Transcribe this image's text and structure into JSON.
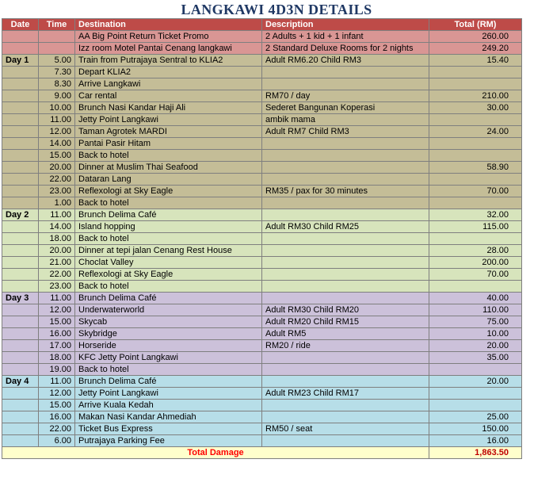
{
  "title": "LANGKAWI 4D3N DETAILS",
  "table": {
    "headers": [
      "Date",
      "Time",
      "Destination",
      "Description",
      "Total (RM)"
    ],
    "rows": [
      {
        "group": "promo",
        "date": "",
        "time": "",
        "destination": "AA Big Point Return Ticket Promo",
        "description": "2 Adults + 1 kid + 1 infant",
        "total": "260.00"
      },
      {
        "group": "promo",
        "date": "",
        "time": "",
        "destination": "Izz room Motel Pantai Cenang langkawi",
        "description": "2 Standard Deluxe Rooms for 2 nights",
        "total": "249.20"
      },
      {
        "group": "day1",
        "date": "Day 1",
        "time": "5.00",
        "destination": "Train from Putrajaya Sentral to KLIA2",
        "description": "Adult RM6.20 Child RM3",
        "total": "15.40"
      },
      {
        "group": "day1",
        "date": "",
        "time": "7.30",
        "destination": "Depart KLIA2",
        "description": "",
        "total": ""
      },
      {
        "group": "day1",
        "date": "",
        "time": "8.30",
        "destination": "Arrive Langkawi",
        "description": "",
        "total": ""
      },
      {
        "group": "day1",
        "date": "",
        "time": "9.00",
        "destination": "Car rental",
        "description": "RM70 / day",
        "total": "210.00"
      },
      {
        "group": "day1",
        "date": "",
        "time": "10.00",
        "destination": "Brunch Nasi Kandar Haji Ali",
        "description": "Sederet Bangunan Koperasi",
        "total": "30.00"
      },
      {
        "group": "day1",
        "date": "",
        "time": "11.00",
        "destination": "Jetty Point Langkawi",
        "description": "ambik mama",
        "total": ""
      },
      {
        "group": "day1",
        "date": "",
        "time": "12.00",
        "destination": "Taman Agrotek MARDI",
        "description": "Adult RM7 Child RM3",
        "total": "24.00"
      },
      {
        "group": "day1",
        "date": "",
        "time": "14.00",
        "destination": "Pantai Pasir Hitam",
        "description": "",
        "total": ""
      },
      {
        "group": "day1",
        "date": "",
        "time": "15.00",
        "destination": "Back to hotel",
        "description": "",
        "total": ""
      },
      {
        "group": "day1",
        "date": "",
        "time": "20.00",
        "destination": "Dinner at Muslim Thai Seafood",
        "description": "",
        "total": "58.90"
      },
      {
        "group": "day1",
        "date": "",
        "time": "22.00",
        "destination": "Dataran Lang",
        "description": "",
        "total": ""
      },
      {
        "group": "day1",
        "date": "",
        "time": "23.00",
        "destination": "Reflexologi at Sky Eagle",
        "description": "RM35 / pax for 30 minutes",
        "total": "70.00"
      },
      {
        "group": "day1",
        "date": "",
        "time": "1.00",
        "destination": "Back to hotel",
        "description": "",
        "total": ""
      },
      {
        "group": "day2",
        "date": "Day 2",
        "time": "11.00",
        "destination": "Brunch Delima Café",
        "description": "",
        "total": "32.00"
      },
      {
        "group": "day2",
        "date": "",
        "time": "14.00",
        "destination": "Island hopping",
        "description": "Adult RM30 Child RM25",
        "total": "115.00"
      },
      {
        "group": "day2",
        "date": "",
        "time": "18.00",
        "destination": "Back to hotel",
        "description": "",
        "total": ""
      },
      {
        "group": "day2",
        "date": "",
        "time": "20.00",
        "destination": "Dinner at tepi jalan Cenang Rest House",
        "description": "",
        "total": "28.00"
      },
      {
        "group": "day2",
        "date": "",
        "time": "21.00",
        "destination": "Choclat Valley",
        "description": "",
        "total": "200.00"
      },
      {
        "group": "day2",
        "date": "",
        "time": "22.00",
        "destination": "Reflexologi at Sky Eagle",
        "description": "",
        "total": "70.00"
      },
      {
        "group": "day2",
        "date": "",
        "time": "23.00",
        "destination": "Back to hotel",
        "description": "",
        "total": ""
      },
      {
        "group": "day3",
        "date": "Day 3",
        "time": "11.00",
        "destination": "Brunch Delima Café",
        "description": "",
        "total": "40.00"
      },
      {
        "group": "day3",
        "date": "",
        "time": "12.00",
        "destination": "Underwaterworld",
        "description": "Adult RM30 Child RM20",
        "total": "110.00"
      },
      {
        "group": "day3",
        "date": "",
        "time": "15.00",
        "destination": "Skycab",
        "description": "Adult RM20 Child RM15",
        "total": "75.00"
      },
      {
        "group": "day3",
        "date": "",
        "time": "16.00",
        "destination": "Skybridge",
        "description": "Adult RM5",
        "total": "10.00"
      },
      {
        "group": "day3",
        "date": "",
        "time": "17.00",
        "destination": "Horseride",
        "description": "RM20 / ride",
        "total": "20.00"
      },
      {
        "group": "day3",
        "date": "",
        "time": "18.00",
        "destination": "KFC Jetty Point Langkawi",
        "description": "",
        "total": "35.00"
      },
      {
        "group": "day3",
        "date": "",
        "time": "19.00",
        "destination": "Back to hotel",
        "description": "",
        "total": ""
      },
      {
        "group": "day4",
        "date": "Day 4",
        "time": "11.00",
        "destination": "Brunch Delima Café",
        "description": "",
        "total": "20.00"
      },
      {
        "group": "day4",
        "date": "",
        "time": "12.00",
        "destination": "Jetty Point Langkawi",
        "description": "Adult RM23 Child RM17",
        "total": ""
      },
      {
        "group": "day4",
        "date": "",
        "time": "15.00",
        "destination": "Arrive Kuala Kedah",
        "description": "",
        "total": ""
      },
      {
        "group": "day4",
        "date": "",
        "time": "16.00",
        "destination": "Makan Nasi Kandar Ahmediah",
        "description": "",
        "total": "25.00"
      },
      {
        "group": "day4",
        "date": "",
        "time": "22.00",
        "destination": "Ticket Bus Express",
        "description": "RM50 / seat",
        "total": "150.00"
      },
      {
        "group": "day4",
        "date": "",
        "time": "6.00",
        "destination": "Putrajaya Parking Fee",
        "description": "",
        "total": "16.00"
      }
    ],
    "footer": {
      "label": "Total Damage",
      "total": "1,863.50"
    }
  },
  "colors": {
    "title_text": "#1F3864",
    "header_bg": "#BE4B48",
    "header_text": "#FFFFFF",
    "promo_row_bg": "#D99694",
    "day1_row_bg": "#C4BD97",
    "day2_row_bg": "#D7E4BC",
    "day3_row_bg": "#CCC1DA",
    "day4_row_bg": "#B7DEE8",
    "footer_row_bg": "#FFFFCC",
    "footer_label_text": "#FF0000",
    "footer_total_text": "#C00000",
    "grid_border": "#7F7F7F"
  }
}
